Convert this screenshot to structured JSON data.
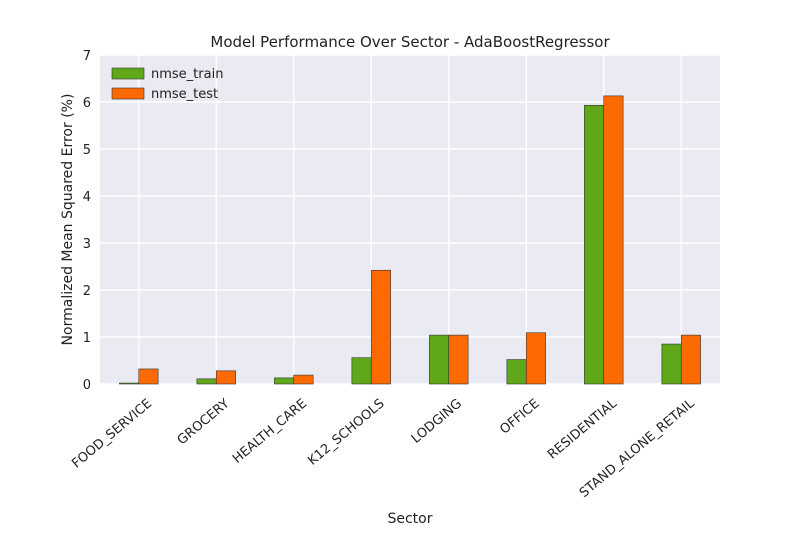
{
  "chart_data": {
    "type": "bar",
    "title": "Model Performance Over Sector - AdaBoostRegressor",
    "xlabel": "Sector",
    "ylabel": "Normalized Mean Squared Error (%)",
    "categories": [
      "FOOD_SERVICE",
      "GROCERY",
      "HEALTH_CARE",
      "K12_SCHOOLS",
      "LODGING",
      "OFFICE",
      "RESIDENTIAL",
      "STAND_ALONE_RETAIL"
    ],
    "series": [
      {
        "name": "nmse_train",
        "color": "#5fa81a",
        "values": [
          0.02,
          0.11,
          0.13,
          0.56,
          1.04,
          0.52,
          5.93,
          0.85
        ]
      },
      {
        "name": "nmse_test",
        "color": "#fd6a02",
        "values": [
          0.32,
          0.28,
          0.19,
          2.42,
          1.04,
          1.09,
          6.13,
          1.04
        ]
      }
    ],
    "ylim": [
      0,
      7
    ],
    "yticks": [
      "0",
      "1",
      "2",
      "3",
      "4",
      "5",
      "6",
      "7"
    ],
    "grid": true,
    "legend_position": "top-left",
    "background": "#eaeaf2"
  }
}
